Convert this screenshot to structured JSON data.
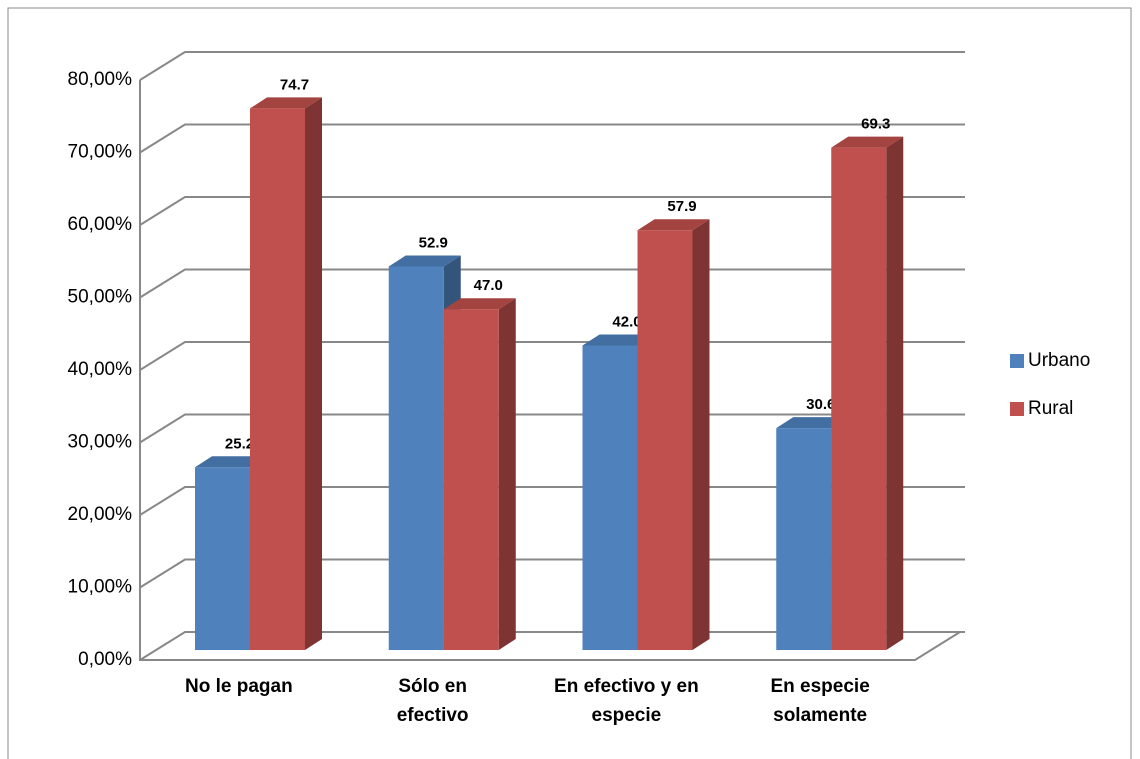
{
  "chart_data": {
    "type": "bar3d",
    "categories": [
      "No le pagan",
      "Sólo en\nefectivo",
      "En efectivo y en\nespecie",
      "En especie\nsolamente"
    ],
    "series": [
      {
        "name": "Urbano",
        "color": "#4f81bd",
        "values": [
          25.2,
          52.9,
          42.0,
          30.6
        ],
        "value_labels": [
          "25.2",
          "52.9",
          "42.0",
          "30.6"
        ]
      },
      {
        "name": "Rural",
        "color": "#c0504d",
        "values": [
          74.7,
          47.0,
          57.9,
          69.3
        ],
        "value_labels": [
          "74.7",
          "47.0",
          "57.9",
          "69.3"
        ]
      }
    ],
    "ylim": [
      0,
      80
    ],
    "yticks": [
      {
        "value": 0,
        "label": "0,00%"
      },
      {
        "value": 10,
        "label": "10,00%"
      },
      {
        "value": 20,
        "label": "20,00%"
      },
      {
        "value": 30,
        "label": "30,00%"
      },
      {
        "value": 40,
        "label": "40,00%"
      },
      {
        "value": 50,
        "label": "50,00%"
      },
      {
        "value": 60,
        "label": "60,00%"
      },
      {
        "value": 70,
        "label": "70,00%"
      },
      {
        "value": 80,
        "label": "80,00%"
      }
    ],
    "grid": true,
    "legend": "right"
  }
}
